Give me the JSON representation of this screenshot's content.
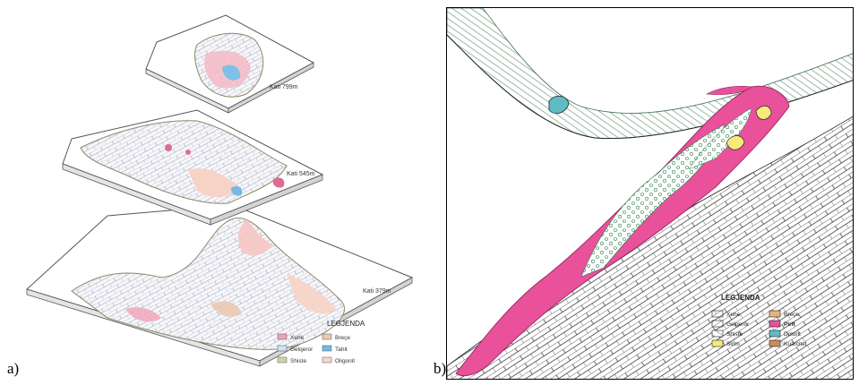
{
  "panel_a": {
    "label": "a)",
    "levels": [
      {
        "label": "Kati 799m"
      },
      {
        "label": "Kati 545m"
      },
      {
        "label": "Kati 379m"
      }
    ],
    "legend": {
      "title": "LEGJENDA",
      "items": [
        {
          "label": "Xehe",
          "color": "#f0a3b8"
        },
        {
          "label": "Breçe",
          "color": "#e9c9b3"
        },
        {
          "label": "Gelqeror",
          "color": "#cfe3f3"
        },
        {
          "label": "Tahit",
          "color": "#73b9e4"
        },
        {
          "label": "Shiste",
          "color": "#c9d9a0"
        },
        {
          "label": "Oligonit",
          "color": "#f6d7c6"
        }
      ]
    }
  },
  "panel_b": {
    "label": "b)",
    "legend": {
      "title": "LEGJENDA",
      "items": [
        {
          "label": "Xehe",
          "color": "#ffffff"
        },
        {
          "label": "Breçe",
          "color": "#e8b27a"
        },
        {
          "label": "Gelqeror",
          "color": "#ffffff"
        },
        {
          "label": "Pirit",
          "color": "#e9519a"
        },
        {
          "label": "Shiste",
          "color": "#ffffff"
        },
        {
          "label": "Dolorit",
          "color": "#5fbcc5"
        },
        {
          "label": "Slom",
          "color": "#f6ea7a"
        },
        {
          "label": "Kuarcitet",
          "color": "#c98c5a"
        }
      ]
    }
  }
}
